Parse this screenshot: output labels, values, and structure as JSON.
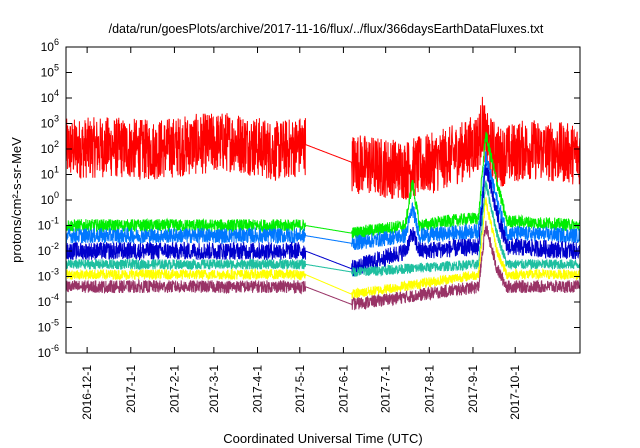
{
  "chart_data": {
    "type": "line",
    "title": "/data/run/goesPlots/archive/2017-11-16/flux/../flux/366daysEarthDataFluxes.txt",
    "xlabel": "Coordinated Universal Time (UTC)",
    "ylabel": "protons/cm²-s-sr-MeV",
    "scale": "log",
    "xlim": [
      "2016-11-16",
      "2017-11-16"
    ],
    "ylim": [
      1e-06,
      1000000.0
    ],
    "x_ticks": [
      "2016-12-1",
      "2017-1-1",
      "2017-2-1",
      "2017-3-1",
      "2017-4-1",
      "2017-5-1",
      "2017-6-1",
      "2017-7-1",
      "2017-8-1",
      "2017-9-1",
      "2017-10-1"
    ],
    "y_ticks": [
      {
        "base": "10",
        "exp": "-6",
        "value": 1e-06
      },
      {
        "base": "10",
        "exp": "-5",
        "value": 1e-05
      },
      {
        "base": "10",
        "exp": "-4",
        "value": 0.0001
      },
      {
        "base": "10",
        "exp": "-3",
        "value": 0.001
      },
      {
        "base": "10",
        "exp": "-2",
        "value": 0.01
      },
      {
        "base": "10",
        "exp": "-1",
        "value": 0.1
      },
      {
        "base": "10",
        "exp": "0",
        "value": 1
      },
      {
        "base": "10",
        "exp": "1",
        "value": 10
      },
      {
        "base": "10",
        "exp": "2",
        "value": 100
      },
      {
        "base": "10",
        "exp": "3",
        "value": 1000
      },
      {
        "base": "10",
        "exp": "4",
        "value": 10000.0
      },
      {
        "base": "10",
        "exp": "5",
        "value": 100000.0
      },
      {
        "base": "10",
        "exp": "6",
        "value": 1000000.0
      }
    ],
    "data_gap": [
      "2017-05-05",
      "2017-06-07"
    ],
    "series": [
      {
        "color": "#ff0000",
        "x": [
          "2016-11-16",
          "2016-12-15",
          "2017-01-15",
          "2017-02-15",
          "2017-03-15",
          "2017-04-15",
          "2017-05-05",
          "2017-06-07",
          "2017-06-25",
          "2017-07-15",
          "2017-08-05",
          "2017-08-25",
          "2017-09-05",
          "2017-09-08",
          "2017-09-10",
          "2017-09-20",
          "2017-10-10",
          "2017-11-16"
        ],
        "y": [
          100,
          120,
          90,
          150,
          200,
          80,
          150,
          30,
          20,
          15,
          30,
          80,
          200,
          1000,
          200,
          50,
          100,
          60
        ]
      },
      {
        "color": "#00ee00",
        "x": [
          "2016-11-16",
          "2017-02-01",
          "2017-05-05",
          "2017-06-07",
          "2017-07-15",
          "2017-07-20",
          "2017-07-25",
          "2017-08-15",
          "2017-09-05",
          "2017-09-10",
          "2017-09-18",
          "2017-09-25",
          "2017-11-16"
        ],
        "y": [
          0.1,
          0.1,
          0.1,
          0.05,
          0.1,
          5,
          0.1,
          0.15,
          0.2,
          400,
          5,
          0.15,
          0.1
        ]
      },
      {
        "color": "#0077ff",
        "x": [
          "2016-11-16",
          "2017-02-01",
          "2017-05-05",
          "2017-06-07",
          "2017-07-15",
          "2017-07-20",
          "2017-07-25",
          "2017-09-05",
          "2017-09-10",
          "2017-09-18",
          "2017-09-25",
          "2017-11-16"
        ],
        "y": [
          0.04,
          0.04,
          0.04,
          0.02,
          0.04,
          0.5,
          0.04,
          0.06,
          50,
          1,
          0.05,
          0.04
        ]
      },
      {
        "color": "#0000cc",
        "x": [
          "2016-11-16",
          "2017-02-01",
          "2017-05-05",
          "2017-06-07",
          "2017-07-15",
          "2017-07-20",
          "2017-07-25",
          "2017-09-05",
          "2017-09-10",
          "2017-09-18",
          "2017-09-25",
          "2017-11-16"
        ],
        "y": [
          0.01,
          0.01,
          0.01,
          0.002,
          0.01,
          0.05,
          0.01,
          0.015,
          20,
          0.3,
          0.015,
          0.01
        ]
      },
      {
        "color": "#1fbfa0",
        "x": [
          "2016-11-16",
          "2017-05-05",
          "2017-06-07",
          "2017-09-05",
          "2017-09-10",
          "2017-09-18",
          "2017-09-25",
          "2017-11-16"
        ],
        "y": [
          0.003,
          0.003,
          0.0015,
          0.003,
          5,
          0.05,
          0.003,
          0.003
        ]
      },
      {
        "color": "#ffff00",
        "x": [
          "2016-11-16",
          "2017-05-05",
          "2017-06-07",
          "2017-09-05",
          "2017-09-10",
          "2017-09-18",
          "2017-09-25",
          "2017-11-16"
        ],
        "y": [
          0.0012,
          0.0012,
          0.0002,
          0.0012,
          1,
          0.01,
          0.0012,
          0.0012
        ]
      },
      {
        "color": "#993366",
        "x": [
          "2016-11-16",
          "2017-05-05",
          "2017-06-07",
          "2017-09-05",
          "2017-09-10",
          "2017-09-18",
          "2017-09-25",
          "2017-11-16"
        ],
        "y": [
          0.0004,
          0.0004,
          8e-05,
          0.0004,
          0.1,
          0.002,
          0.0004,
          0.0004
        ]
      }
    ]
  }
}
